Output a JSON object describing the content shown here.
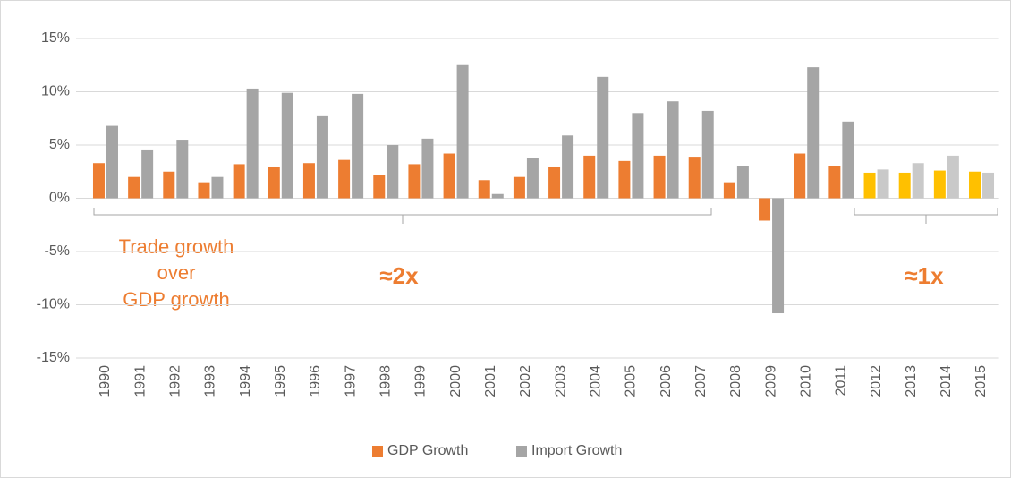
{
  "chart_data": {
    "type": "bar",
    "categories": [
      "1990",
      "1991",
      "1992",
      "1993",
      "1994",
      "1995",
      "1996",
      "1997",
      "1998",
      "1999",
      "2000",
      "2001",
      "2002",
      "2003",
      "2004",
      "2005",
      "2006",
      "2007",
      "2008",
      "2009",
      "2010",
      "2011",
      "2012",
      "2013",
      "2014",
      "2015"
    ],
    "series": [
      {
        "name": "GDP Growth",
        "color": "#ed7d31",
        "colors": [
          "#ed7d31",
          "#ed7d31",
          "#ed7d31",
          "#ed7d31",
          "#ed7d31",
          "#ed7d31",
          "#ed7d31",
          "#ed7d31",
          "#ed7d31",
          "#ed7d31",
          "#ed7d31",
          "#ed7d31",
          "#ed7d31",
          "#ed7d31",
          "#ed7d31",
          "#ed7d31",
          "#ed7d31",
          "#ed7d31",
          "#ed7d31",
          "#ed7d31",
          "#ed7d31",
          "#ed7d31",
          "#ffc000",
          "#ffc000",
          "#ffc000",
          "#ffc000"
        ],
        "values": [
          3.3,
          2.0,
          2.5,
          1.5,
          3.2,
          2.9,
          3.3,
          3.6,
          2.2,
          3.2,
          4.2,
          1.7,
          2.0,
          2.9,
          4.0,
          3.5,
          4.0,
          3.9,
          1.5,
          -2.1,
          4.2,
          3.0,
          2.4,
          2.4,
          2.6,
          2.5
        ]
      },
      {
        "name": "Import Growth",
        "color": "#a5a5a5",
        "colors": [
          "#a5a5a5",
          "#a5a5a5",
          "#a5a5a5",
          "#a5a5a5",
          "#a5a5a5",
          "#a5a5a5",
          "#a5a5a5",
          "#a5a5a5",
          "#a5a5a5",
          "#a5a5a5",
          "#a5a5a5",
          "#a5a5a5",
          "#a5a5a5",
          "#a5a5a5",
          "#a5a5a5",
          "#a5a5a5",
          "#a5a5a5",
          "#a5a5a5",
          "#a5a5a5",
          "#a5a5a5",
          "#a5a5a5",
          "#a5a5a5",
          "#c9c9c9",
          "#c9c9c9",
          "#c9c9c9",
          "#c9c9c9"
        ],
        "values": [
          6.8,
          4.5,
          5.5,
          2.0,
          10.3,
          9.9,
          7.7,
          9.8,
          5.0,
          5.6,
          12.5,
          0.4,
          3.8,
          5.9,
          11.4,
          8.0,
          9.1,
          8.2,
          3.0,
          -10.8,
          12.3,
          7.2,
          2.7,
          3.3,
          4.0,
          2.4
        ]
      }
    ],
    "ylim": [
      -15,
      15
    ],
    "yticks": [
      {
        "value": -15,
        "label": "-15%"
      },
      {
        "value": -10,
        "label": "-10%"
      },
      {
        "value": -5,
        "label": "-5%"
      },
      {
        "value": 0,
        "label": "0%"
      },
      {
        "value": 5,
        "label": "5%"
      },
      {
        "value": 10,
        "label": "10%"
      },
      {
        "value": 15,
        "label": "15%"
      }
    ],
    "grid": true,
    "legend": "bottom",
    "annotations": [
      "Trade growth",
      "over",
      "GDP growth",
      "≈2x",
      "≈1x"
    ]
  }
}
